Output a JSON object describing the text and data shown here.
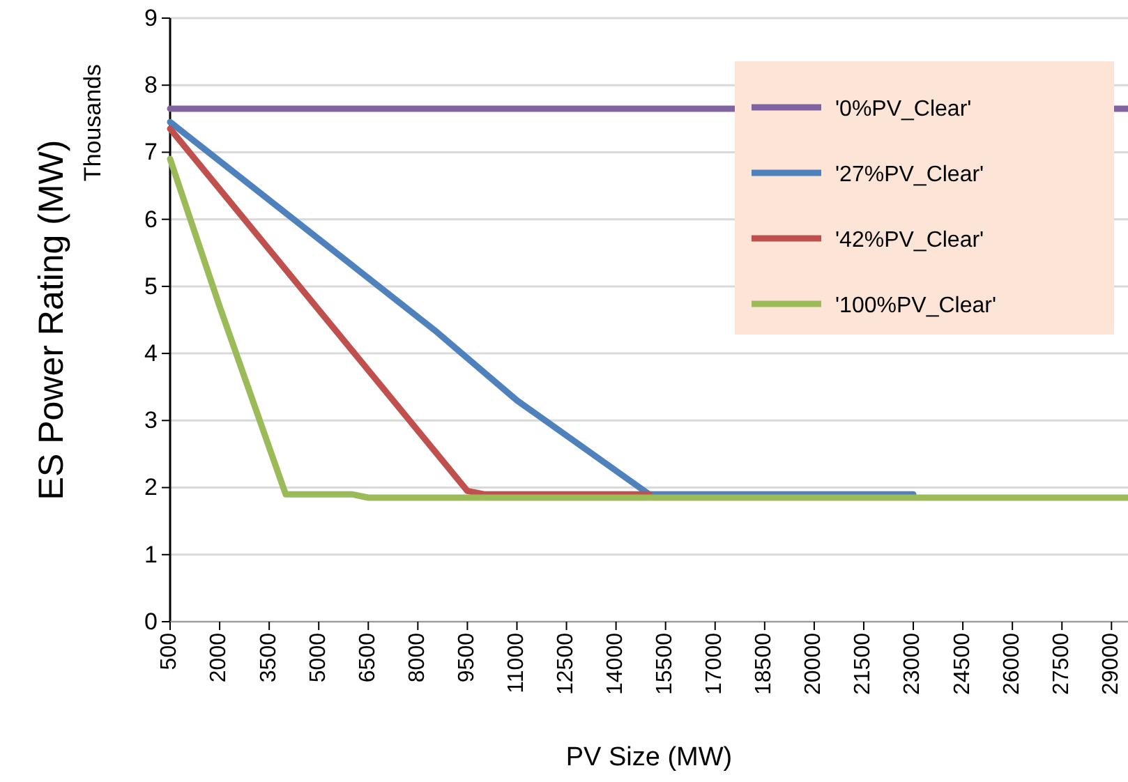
{
  "chart_data": {
    "type": "line",
    "xlabel": "PV Size (MW)",
    "ylabel": "ES Power Rating (MW)",
    "annotations": [
      "Thousands"
    ],
    "xlim": [
      500,
      29500
    ],
    "xticks": [
      500,
      2000,
      3500,
      5000,
      6500,
      8000,
      9500,
      11000,
      12500,
      14000,
      15500,
      17000,
      18500,
      20000,
      21500,
      23000,
      24500,
      26000,
      27500,
      29000
    ],
    "ylim": [
      0,
      9
    ],
    "yticks": [
      0,
      1,
      2,
      3,
      4,
      5,
      6,
      7,
      8,
      9
    ],
    "grid": "y",
    "legend": "top right",
    "line_style": "solid",
    "marker": "none",
    "series": [
      {
        "name": "'0%PV_Clear'",
        "color": "#8064a2",
        "x": [
          500,
          29500
        ],
        "values": [
          7.65,
          7.65
        ]
      },
      {
        "name": "'27%PV_Clear'",
        "color": "#4f81bd",
        "x": [
          500,
          8500,
          11000,
          15000,
          23000
        ],
        "values": [
          7.45,
          4.35,
          3.3,
          1.9,
          1.9
        ]
      },
      {
        "name": "'42%PV_Clear'",
        "color": "#c0504d",
        "x": [
          500,
          5000,
          9500,
          10000,
          15000
        ],
        "values": [
          7.35,
          4.65,
          1.95,
          1.9,
          1.9
        ]
      },
      {
        "name": "'100%PV_Clear'",
        "color": "#9bbb59",
        "x": [
          500,
          2000,
          4000,
          6000,
          6500,
          29500
        ],
        "values": [
          6.9,
          4.7,
          1.9,
          1.9,
          1.85,
          1.85
        ]
      }
    ]
  }
}
